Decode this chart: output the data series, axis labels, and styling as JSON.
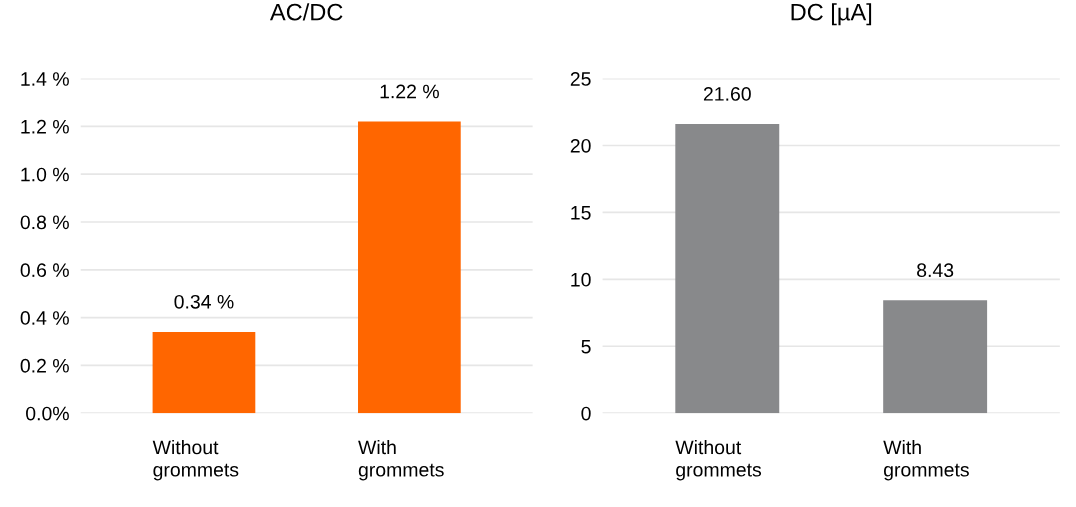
{
  "chart_data": [
    {
      "type": "bar",
      "title": "AC/DC",
      "categories": [
        "Without\ngrommets",
        "With\ngrommets"
      ],
      "values": [
        0.34,
        1.22
      ],
      "color": "#ff6600",
      "value_labels": [
        "0.34 %",
        "1.22 %"
      ],
      "ylim": [
        0,
        1.4
      ],
      "yticks": [
        {
          "value": 0,
          "label": "0.0%"
        },
        {
          "value": 0.2,
          "label": "0.2 %"
        },
        {
          "value": 0.4,
          "label": "0.4 %"
        },
        {
          "value": 0.6,
          "label": "0.6 %"
        },
        {
          "value": 0.8,
          "label": "0.8 %"
        },
        {
          "value": 1.0,
          "label": "1.0 %"
        },
        {
          "value": 1.2,
          "label": "1.2 %"
        },
        {
          "value": 1.4,
          "label": "1.4 %"
        }
      ],
      "grid": "y"
    },
    {
      "type": "bar",
      "title": "DC [µA]",
      "categories": [
        "Without\ngrommets",
        "With\ngrommets"
      ],
      "values": [
        21.6,
        8.43
      ],
      "color": "#88898b",
      "value_labels": [
        "21.60",
        "8.43"
      ],
      "ylim": [
        0,
        25
      ],
      "yticks": [
        0,
        5,
        10,
        15,
        20,
        25
      ],
      "grid": "y"
    }
  ]
}
